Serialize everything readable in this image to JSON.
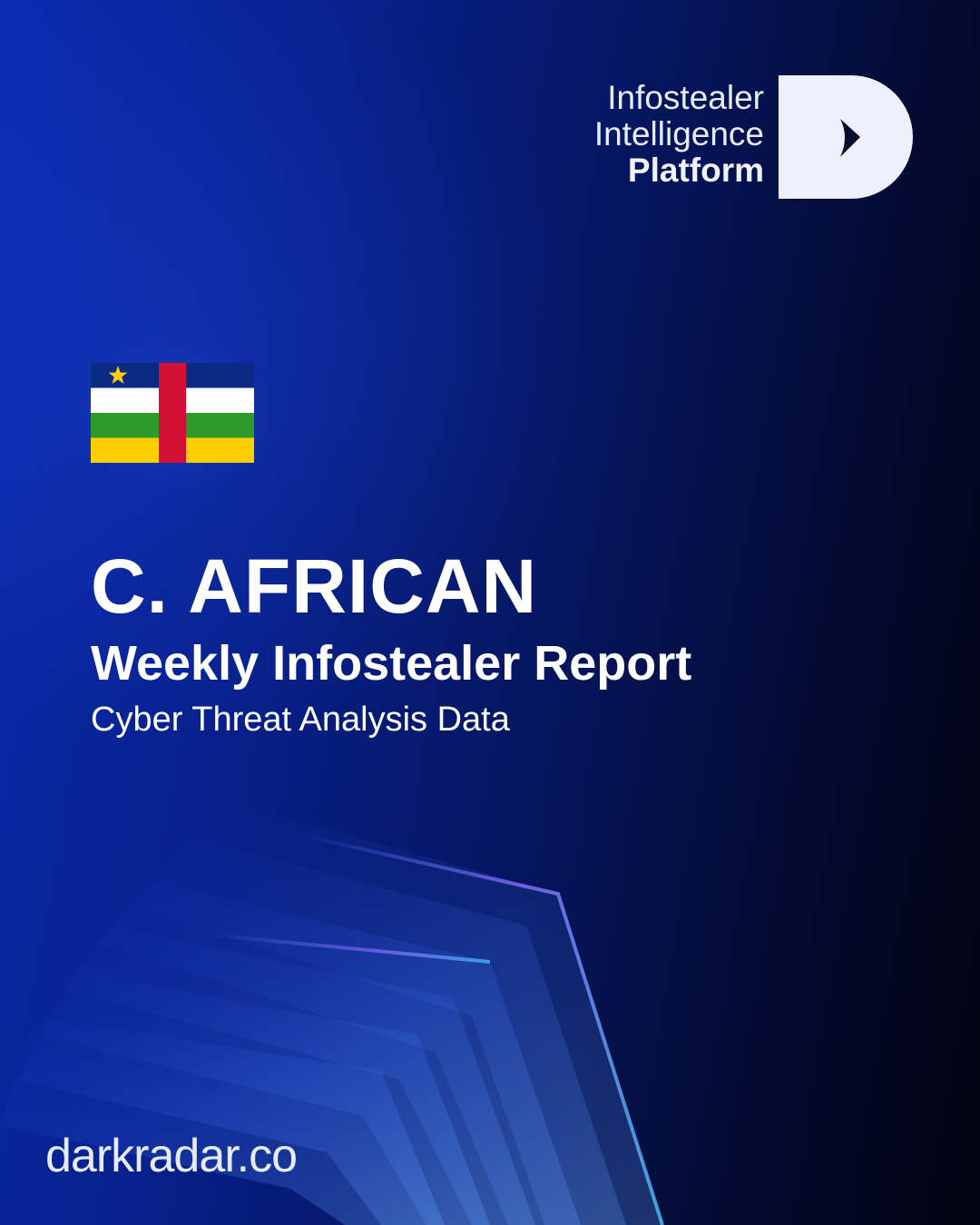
{
  "brand": {
    "logo_lines": [
      "Infostealer",
      "Intelligence",
      "Platform"
    ],
    "logo_icon": "d-arrow-logo-icon",
    "website": "darkradar.co"
  },
  "flag": {
    "country_icon": "central-african-republic-flag-icon",
    "colors": {
      "blue": "#0b2a84",
      "white": "#ffffff",
      "green": "#2e9a2c",
      "yellow": "#ffce00",
      "red": "#d21034",
      "star": "#ffce00"
    }
  },
  "heading": {
    "title": "C. AFRICAN",
    "subtitle": "Weekly Infostealer Report",
    "tagline": "Cyber Threat Analysis Data"
  },
  "colors": {
    "background_start": "#0a2bb0",
    "background_end": "#01030f",
    "accent": "#3b6cff"
  }
}
